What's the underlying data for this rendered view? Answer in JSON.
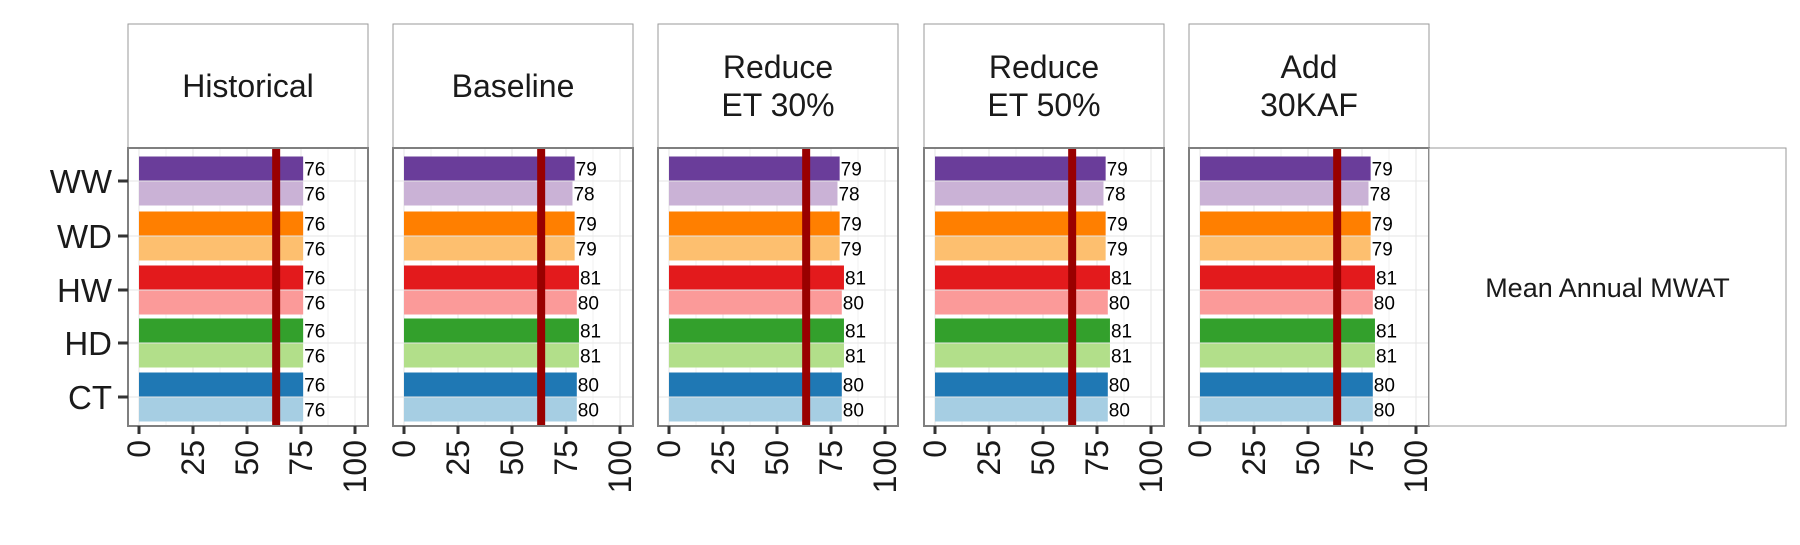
{
  "chart_data": {
    "type": "bar",
    "orientation": "horizontal",
    "facet_row_label": "Mean Annual MWAT",
    "panels": [
      {
        "title_lines": [
          "Historical"
        ],
        "rows": [
          {
            "cat": "WW",
            "values": [
              76,
              76
            ]
          },
          {
            "cat": "WD",
            "values": [
              76,
              76
            ]
          },
          {
            "cat": "HW",
            "values": [
              76,
              76
            ]
          },
          {
            "cat": "HD",
            "values": [
              76,
              76
            ]
          },
          {
            "cat": "CT",
            "values": [
              76,
              76
            ]
          }
        ]
      },
      {
        "title_lines": [
          "Baseline"
        ],
        "rows": [
          {
            "cat": "WW",
            "values": [
              79,
              78
            ]
          },
          {
            "cat": "WD",
            "values": [
              79,
              79
            ]
          },
          {
            "cat": "HW",
            "values": [
              81,
              80
            ]
          },
          {
            "cat": "HD",
            "values": [
              81,
              81
            ]
          },
          {
            "cat": "CT",
            "values": [
              80,
              80
            ]
          }
        ]
      },
      {
        "title_lines": [
          "Reduce",
          "ET 30%"
        ],
        "rows": [
          {
            "cat": "WW",
            "values": [
              79,
              78
            ]
          },
          {
            "cat": "WD",
            "values": [
              79,
              79
            ]
          },
          {
            "cat": "HW",
            "values": [
              81,
              80
            ]
          },
          {
            "cat": "HD",
            "values": [
              81,
              81
            ]
          },
          {
            "cat": "CT",
            "values": [
              80,
              80
            ]
          }
        ]
      },
      {
        "title_lines": [
          "Reduce",
          "ET 50%"
        ],
        "rows": [
          {
            "cat": "WW",
            "values": [
              79,
              78
            ]
          },
          {
            "cat": "WD",
            "values": [
              79,
              79
            ]
          },
          {
            "cat": "HW",
            "values": [
              81,
              80
            ]
          },
          {
            "cat": "HD",
            "values": [
              81,
              81
            ]
          },
          {
            "cat": "CT",
            "values": [
              80,
              80
            ]
          }
        ]
      },
      {
        "title_lines": [
          "Add",
          "30KAF"
        ],
        "rows": [
          {
            "cat": "WW",
            "values": [
              79,
              78
            ]
          },
          {
            "cat": "WD",
            "values": [
              79,
              79
            ]
          },
          {
            "cat": "HW",
            "values": [
              81,
              80
            ]
          },
          {
            "cat": "HD",
            "values": [
              81,
              81
            ]
          },
          {
            "cat": "CT",
            "values": [
              80,
              80
            ]
          }
        ]
      }
    ],
    "categories": [
      "WW",
      "WD",
      "HW",
      "HD",
      "CT"
    ],
    "series_colors": {
      "WW": [
        "#6a3d9a",
        "#cab2d6"
      ],
      "WD": [
        "#ff7f00",
        "#fdbf6f"
      ],
      "HW": [
        "#e31a1c",
        "#fb9a99"
      ],
      "HD": [
        "#33a02c",
        "#b2df8a"
      ],
      "CT": [
        "#1f78b4",
        "#a6cee3"
      ]
    },
    "reference_line": {
      "value": 63.5,
      "color": "#990000"
    },
    "xlim": [
      0,
      100
    ],
    "x_ticks": [
      0,
      25,
      50,
      75,
      100
    ],
    "xlabel": "",
    "ylabel": "",
    "grid": true
  }
}
